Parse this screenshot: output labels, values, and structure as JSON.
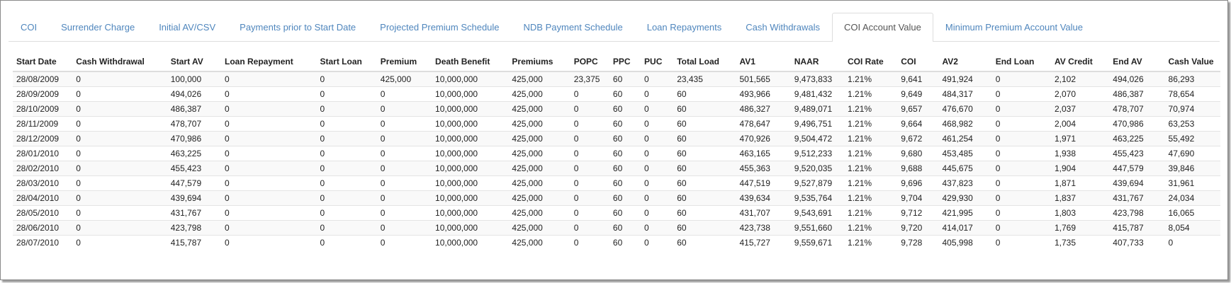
{
  "tabs": [
    "COI",
    "Surrender Charge",
    "Initial AV/CSV",
    "Payments prior to Start Date",
    "Projected Premium Schedule",
    "NDB Payment Schedule",
    "Loan Repayments",
    "Cash Withdrawals",
    "COI Account Value",
    "Minimum Premium Account Value"
  ],
  "active_tab": 8,
  "table": {
    "headers": [
      "Start Date",
      "Cash Withdrawal",
      "Start AV",
      "Loan Repayment",
      "Start Loan",
      "Premium",
      "Death Benefit",
      "Premiums",
      "POPC",
      "PPC",
      "PUC",
      "Total Load",
      "AV1",
      "NAAR",
      "COI Rate",
      "COI",
      "AV2",
      "End Loan",
      "AV Credit",
      "End AV",
      "Cash Value"
    ],
    "rows": [
      [
        "28/08/2009",
        "0",
        "100,000",
        "0",
        "0",
        "425,000",
        "10,000,000",
        "425,000",
        "23,375",
        "60",
        "0",
        "23,435",
        "501,565",
        "9,473,833",
        "1.21%",
        "9,641",
        "491,924",
        "0",
        "2,102",
        "494,026",
        "86,293"
      ],
      [
        "28/09/2009",
        "0",
        "494,026",
        "0",
        "0",
        "0",
        "10,000,000",
        "425,000",
        "0",
        "60",
        "0",
        "60",
        "493,966",
        "9,481,432",
        "1.21%",
        "9,649",
        "484,317",
        "0",
        "2,070",
        "486,387",
        "78,654"
      ],
      [
        "28/10/2009",
        "0",
        "486,387",
        "0",
        "0",
        "0",
        "10,000,000",
        "425,000",
        "0",
        "60",
        "0",
        "60",
        "486,327",
        "9,489,071",
        "1.21%",
        "9,657",
        "476,670",
        "0",
        "2,037",
        "478,707",
        "70,974"
      ],
      [
        "28/11/2009",
        "0",
        "478,707",
        "0",
        "0",
        "0",
        "10,000,000",
        "425,000",
        "0",
        "60",
        "0",
        "60",
        "478,647",
        "9,496,751",
        "1.21%",
        "9,664",
        "468,982",
        "0",
        "2,004",
        "470,986",
        "63,253"
      ],
      [
        "28/12/2009",
        "0",
        "470,986",
        "0",
        "0",
        "0",
        "10,000,000",
        "425,000",
        "0",
        "60",
        "0",
        "60",
        "470,926",
        "9,504,472",
        "1.21%",
        "9,672",
        "461,254",
        "0",
        "1,971",
        "463,225",
        "55,492"
      ],
      [
        "28/01/2010",
        "0",
        "463,225",
        "0",
        "0",
        "0",
        "10,000,000",
        "425,000",
        "0",
        "60",
        "0",
        "60",
        "463,165",
        "9,512,233",
        "1.21%",
        "9,680",
        "453,485",
        "0",
        "1,938",
        "455,423",
        "47,690"
      ],
      [
        "28/02/2010",
        "0",
        "455,423",
        "0",
        "0",
        "0",
        "10,000,000",
        "425,000",
        "0",
        "60",
        "0",
        "60",
        "455,363",
        "9,520,035",
        "1.21%",
        "9,688",
        "445,675",
        "0",
        "1,904",
        "447,579",
        "39,846"
      ],
      [
        "28/03/2010",
        "0",
        "447,579",
        "0",
        "0",
        "0",
        "10,000,000",
        "425,000",
        "0",
        "60",
        "0",
        "60",
        "447,519",
        "9,527,879",
        "1.21%",
        "9,696",
        "437,823",
        "0",
        "1,871",
        "439,694",
        "31,961"
      ],
      [
        "28/04/2010",
        "0",
        "439,694",
        "0",
        "0",
        "0",
        "10,000,000",
        "425,000",
        "0",
        "60",
        "0",
        "60",
        "439,634",
        "9,535,764",
        "1.21%",
        "9,704",
        "429,930",
        "0",
        "1,837",
        "431,767",
        "24,034"
      ],
      [
        "28/05/2010",
        "0",
        "431,767",
        "0",
        "0",
        "0",
        "10,000,000",
        "425,000",
        "0",
        "60",
        "0",
        "60",
        "431,707",
        "9,543,691",
        "1.21%",
        "9,712",
        "421,995",
        "0",
        "1,803",
        "423,798",
        "16,065"
      ],
      [
        "28/06/2010",
        "0",
        "423,798",
        "0",
        "0",
        "0",
        "10,000,000",
        "425,000",
        "0",
        "60",
        "0",
        "60",
        "423,738",
        "9,551,660",
        "1.21%",
        "9,720",
        "414,017",
        "0",
        "1,769",
        "415,787",
        "8,054"
      ],
      [
        "28/07/2010",
        "0",
        "415,787",
        "0",
        "0",
        "0",
        "10,000,000",
        "425,000",
        "0",
        "60",
        "0",
        "60",
        "415,727",
        "9,559,671",
        "1.21%",
        "9,728",
        "405,998",
        "0",
        "1,735",
        "407,733",
        "0"
      ]
    ]
  }
}
